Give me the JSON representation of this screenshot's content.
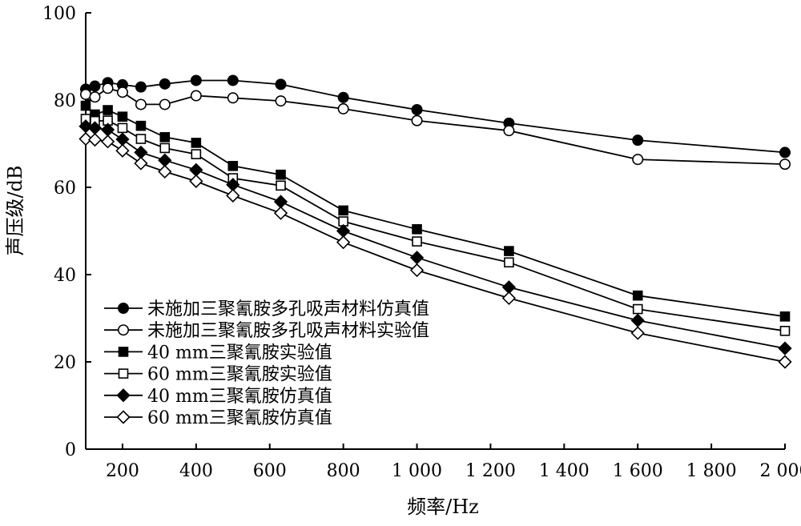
{
  "chart_data": {
    "type": "line",
    "xlabel": "频率/Hz",
    "ylabel": "声压级/dB",
    "xlim": [
      100,
      2000
    ],
    "ylim": [
      0,
      100
    ],
    "x_ticks": [
      200,
      400,
      600,
      800,
      1000,
      1200,
      1400,
      1600,
      1800,
      2000
    ],
    "x_tick_labels": [
      "200",
      "400",
      "600",
      "800",
      "1 000",
      "1 200",
      "1 400",
      "1 600",
      "1 800",
      "2 000"
    ],
    "y_ticks": [
      0,
      20,
      40,
      60,
      80,
      100
    ],
    "y_tick_labels": [
      "0",
      "20",
      "40",
      "60",
      "80",
      "100"
    ],
    "grid": false,
    "legend_position": "bottom-left",
    "x": [
      100,
      125,
      160,
      200,
      250,
      315,
      400,
      500,
      630,
      800,
      1000,
      1250,
      1600,
      2000
    ],
    "series": [
      {
        "name": "未施加三聚氰胺多孔吸声材料仿真值",
        "marker": "circle",
        "fill": "filled",
        "values": [
          82.5,
          83.2,
          84.0,
          83.5,
          83.0,
          83.7,
          84.5,
          84.5,
          83.6,
          80.6,
          77.8,
          74.7,
          70.8,
          68.0
        ]
      },
      {
        "name": "未施加三聚氰胺多孔吸声材料实验值",
        "marker": "circle",
        "fill": "open",
        "values": [
          81.3,
          80.7,
          82.7,
          81.8,
          79.0,
          79.0,
          81.0,
          80.5,
          79.8,
          78.0,
          75.3,
          73.0,
          66.4,
          65.3
        ]
      },
      {
        "name": "40 mm三聚氰胺实验值",
        "marker": "square",
        "fill": "filled",
        "values": [
          78.7,
          76.7,
          77.7,
          76.2,
          74.1,
          71.5,
          70.2,
          64.9,
          62.9,
          54.7,
          50.4,
          45.4,
          35.2,
          30.4
        ]
      },
      {
        "name": "60 mm三聚氰胺实验值",
        "marker": "square",
        "fill": "open",
        "values": [
          75.7,
          75.2,
          75.3,
          73.6,
          71.1,
          69.0,
          67.6,
          62.1,
          60.4,
          52.2,
          47.6,
          42.8,
          32.1,
          27.1
        ]
      },
      {
        "name": "40 mm三聚氰胺仿真值",
        "marker": "diamond",
        "fill": "filled",
        "values": [
          74.0,
          73.6,
          73.2,
          71.0,
          68.0,
          66.2,
          64.0,
          60.6,
          56.7,
          50.0,
          43.9,
          37.1,
          29.5,
          23.1
        ]
      },
      {
        "name": "60 mm三聚氰胺仿真值",
        "marker": "diamond",
        "fill": "open",
        "values": [
          71.1,
          70.9,
          70.5,
          68.4,
          65.5,
          63.6,
          61.4,
          58.1,
          54.1,
          47.4,
          41.0,
          34.6,
          26.6,
          20.0
        ]
      }
    ]
  }
}
